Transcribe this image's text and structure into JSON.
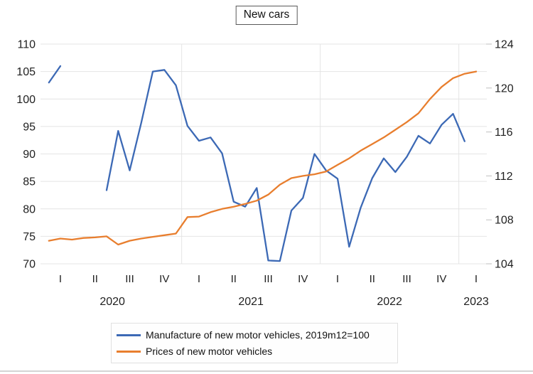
{
  "title": "New cars",
  "accent_colors": {
    "manufacture_blue": "#3c69b5",
    "prices_orange": "#e87e2e"
  },
  "legend": [
    {
      "label": "Manufacture of new motor vehicles, 2019m12=100",
      "color": "#3c69b5"
    },
    {
      "label": "Prices of new motor vehicles",
      "color": "#e87e2e"
    }
  ],
  "chart_data": {
    "type": "line",
    "title": "New cars",
    "x_unit": "month",
    "months": [
      "2020-01",
      "2020-02",
      "2020-03",
      "2020-04",
      "2020-05",
      "2020-06",
      "2020-07",
      "2020-08",
      "2020-09",
      "2020-10",
      "2020-11",
      "2020-12",
      "2021-01",
      "2021-02",
      "2021-03",
      "2021-04",
      "2021-05",
      "2021-06",
      "2021-07",
      "2021-08",
      "2021-09",
      "2021-10",
      "2021-11",
      "2021-12",
      "2022-01",
      "2022-02",
      "2022-03",
      "2022-04",
      "2022-05",
      "2022-06",
      "2022-07",
      "2022-08",
      "2022-09",
      "2022-10",
      "2022-11",
      "2022-12",
      "2023-01",
      "2023-02"
    ],
    "series": [
      {
        "name": "Manufacture of new motor vehicles, 2019m12=100",
        "axis": "left",
        "color": "#3c69b5",
        "note": "gap Mar-May 2020 (missing data)",
        "values": [
          103,
          106,
          null,
          null,
          null,
          83.4,
          94.2,
          87,
          95.7,
          105,
          105.3,
          102.5,
          95.1,
          92.4,
          93,
          90.1,
          81.3,
          80.4,
          83.8,
          70.6,
          70.5,
          79.7,
          82,
          90,
          87,
          85.5,
          73.1,
          80.2,
          85.6,
          89.2,
          86.7,
          89.5,
          93.3,
          91.9,
          95.3,
          97.3,
          92.3,
          null
        ]
      },
      {
        "name": "Prices of new motor vehicles",
        "axis": "right",
        "color": "#e87e2e",
        "values": [
          106.1,
          106.3,
          106.2,
          106.35,
          106.4,
          106.5,
          105.75,
          106.1,
          106.3,
          106.45,
          106.6,
          106.75,
          108.25,
          108.3,
          108.7,
          109.0,
          109.2,
          109.45,
          109.75,
          110.3,
          111.2,
          111.8,
          112.0,
          112.15,
          112.4,
          113.0,
          113.6,
          114.3,
          114.9,
          115.5,
          116.2,
          116.9,
          117.7,
          119.0,
          120.1,
          120.9,
          121.3,
          121.5
        ]
      }
    ],
    "left_axis": {
      "min": 70,
      "max": 110,
      "ticks": [
        110,
        105,
        100,
        95,
        90,
        85,
        80,
        75,
        70
      ]
    },
    "right_axis": {
      "min": 104,
      "max": 124,
      "ticks": [
        124,
        120,
        116,
        112,
        108,
        104
      ]
    },
    "x_axis": {
      "quarter_row": [
        {
          "year": "2020",
          "quarters": [
            "I",
            "II",
            "III",
            "IV"
          ]
        },
        {
          "year": "2021",
          "quarters": [
            "I",
            "II",
            "III",
            "IV"
          ]
        },
        {
          "year": "2022",
          "quarters": [
            "I",
            "II",
            "III",
            "IV"
          ]
        },
        {
          "year": "2023",
          "quarters": [
            "I"
          ]
        }
      ]
    },
    "grid": {
      "horizontal": true,
      "vertical_year_separators": true
    },
    "legend_position": "bottom"
  }
}
